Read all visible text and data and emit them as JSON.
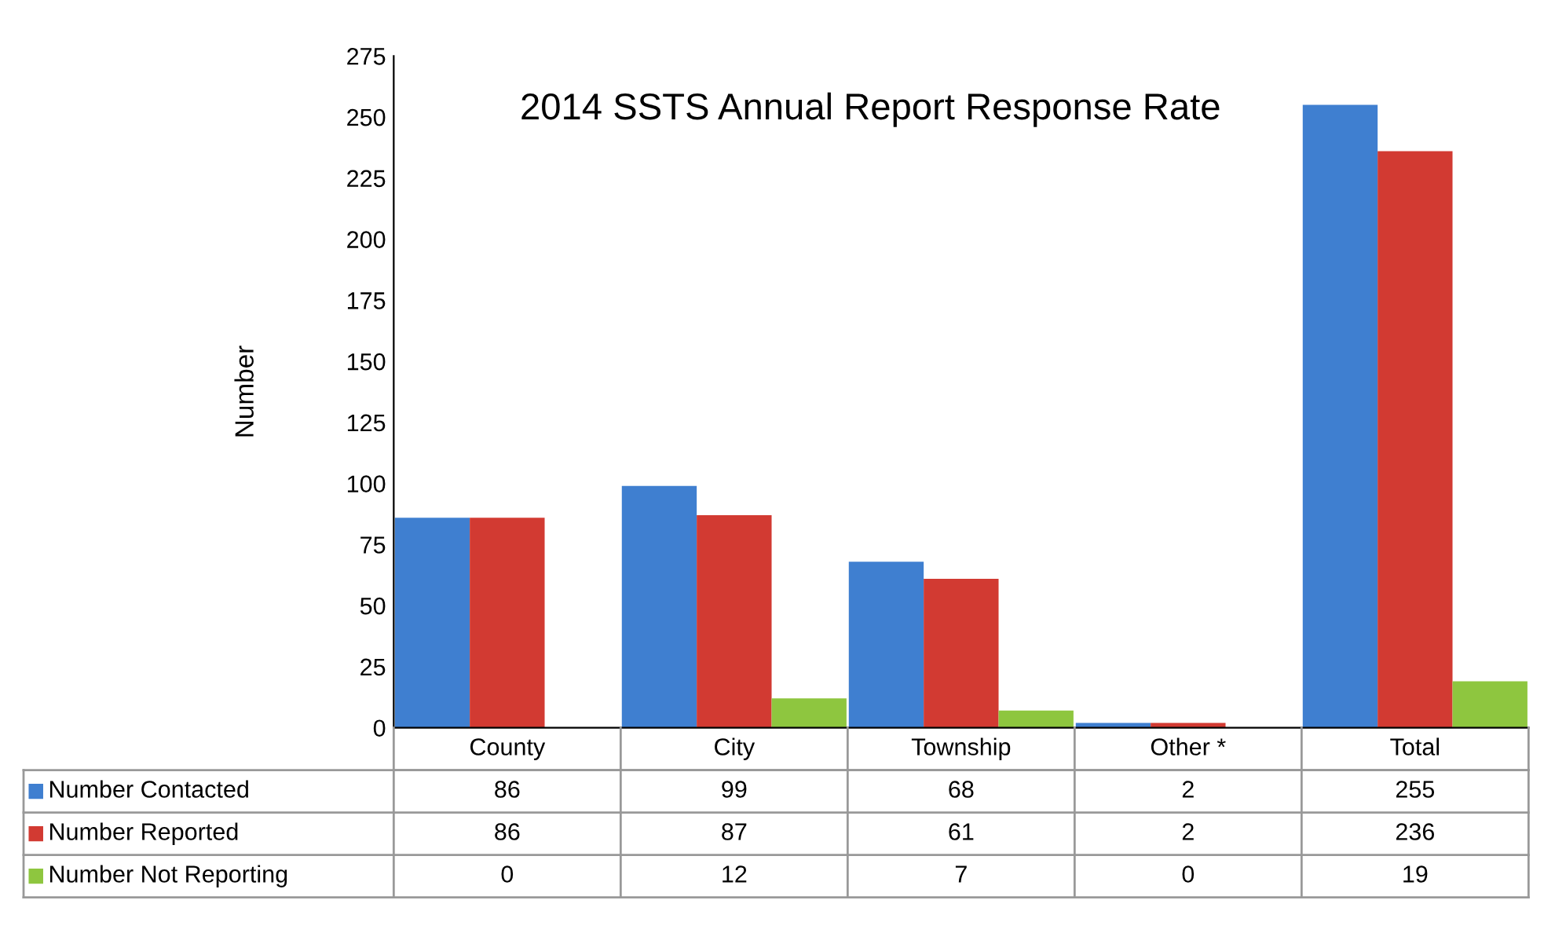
{
  "chart_data": {
    "type": "bar",
    "title": "2014 SSTS Annual Report Response Rate",
    "ylabel": "Number",
    "categories": [
      "County",
      "City",
      "Township",
      "Other *",
      "Total"
    ],
    "series": [
      {
        "name": "Number Contacted",
        "color": "#3f7fd0",
        "values": [
          86,
          99,
          68,
          2,
          255
        ]
      },
      {
        "name": "Number Reported",
        "color": "#d23a32",
        "values": [
          86,
          87,
          61,
          2,
          236
        ]
      },
      {
        "name": "Number Not Reporting",
        "color": "#8ec63f",
        "values": [
          0,
          12,
          7,
          0,
          19
        ]
      }
    ],
    "ylim": [
      0,
      275
    ],
    "yticks": [
      0,
      25,
      50,
      75,
      100,
      125,
      150,
      175,
      200,
      225,
      250,
      275
    ],
    "grid": false,
    "legend": "bottom left",
    "data_labels": true
  }
}
